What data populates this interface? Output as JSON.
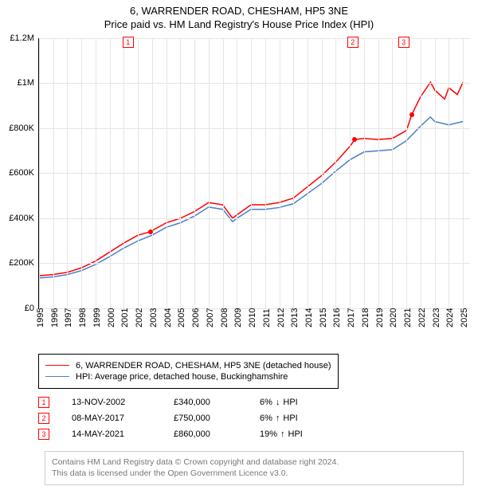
{
  "title": {
    "line1": "6, WARRENDER ROAD, CHESHAM, HP5 3NE",
    "line2": "Price paid vs. HM Land Registry's House Price Index (HPI)"
  },
  "chart": {
    "type": "line",
    "background_color": "#ffffff",
    "grid_color": "#e5e5e5",
    "axis_color": "#000000",
    "font_size_labels": 11,
    "ylim": [
      0,
      1200000
    ],
    "ytick_step": 200000,
    "yticks": [
      {
        "v": 0,
        "label": "£0"
      },
      {
        "v": 200000,
        "label": "£200K"
      },
      {
        "v": 400000,
        "label": "£400K"
      },
      {
        "v": 600000,
        "label": "£600K"
      },
      {
        "v": 800000,
        "label": "£800K"
      },
      {
        "v": 1000000,
        "label": "£1M"
      },
      {
        "v": 1200000,
        "label": "£1.2M"
      }
    ],
    "xlim": [
      1995,
      2025.5
    ],
    "xticks": [
      1995,
      1996,
      1997,
      1998,
      1999,
      2000,
      2001,
      2002,
      2003,
      2004,
      2005,
      2006,
      2007,
      2008,
      2009,
      2010,
      2011,
      2012,
      2013,
      2014,
      2015,
      2016,
      2017,
      2018,
      2019,
      2020,
      2021,
      2022,
      2023,
      2024,
      2025
    ],
    "series": [
      {
        "name": "6, WARRENDER ROAD, CHESHAM, HP5 3NE (detached house)",
        "color": "#ff0000",
        "line_width": 1.5,
        "data": [
          [
            1995,
            145000
          ],
          [
            1996,
            150000
          ],
          [
            1997,
            160000
          ],
          [
            1998,
            180000
          ],
          [
            1999,
            210000
          ],
          [
            2000,
            250000
          ],
          [
            2001,
            290000
          ],
          [
            2002,
            325000
          ],
          [
            2002.87,
            340000
          ],
          [
            2003,
            345000
          ],
          [
            2004,
            380000
          ],
          [
            2005,
            400000
          ],
          [
            2006,
            430000
          ],
          [
            2007,
            470000
          ],
          [
            2008,
            460000
          ],
          [
            2008.7,
            400000
          ],
          [
            2009,
            415000
          ],
          [
            2010,
            460000
          ],
          [
            2011,
            460000
          ],
          [
            2012,
            470000
          ],
          [
            2013,
            490000
          ],
          [
            2014,
            540000
          ],
          [
            2015,
            590000
          ],
          [
            2016,
            650000
          ],
          [
            2017,
            720000
          ],
          [
            2017.35,
            750000
          ],
          [
            2018,
            755000
          ],
          [
            2019,
            750000
          ],
          [
            2020,
            755000
          ],
          [
            2021,
            790000
          ],
          [
            2021.37,
            860000
          ],
          [
            2022,
            940000
          ],
          [
            2022.7,
            1005000
          ],
          [
            2023,
            970000
          ],
          [
            2023.7,
            930000
          ],
          [
            2024,
            980000
          ],
          [
            2024.6,
            950000
          ],
          [
            2025,
            1005000
          ]
        ]
      },
      {
        "name": "HPI: Average price, detached house, Buckinghamshire",
        "color": "#4a7fc8",
        "line_width": 1.5,
        "data": [
          [
            1995,
            135000
          ],
          [
            1996,
            140000
          ],
          [
            1997,
            150000
          ],
          [
            1998,
            168000
          ],
          [
            1999,
            195000
          ],
          [
            2000,
            230000
          ],
          [
            2001,
            268000
          ],
          [
            2002,
            300000
          ],
          [
            2003,
            325000
          ],
          [
            2004,
            360000
          ],
          [
            2005,
            380000
          ],
          [
            2006,
            410000
          ],
          [
            2007,
            450000
          ],
          [
            2008,
            440000
          ],
          [
            2008.7,
            385000
          ],
          [
            2009,
            400000
          ],
          [
            2010,
            440000
          ],
          [
            2011,
            440000
          ],
          [
            2012,
            448000
          ],
          [
            2013,
            465000
          ],
          [
            2014,
            510000
          ],
          [
            2015,
            555000
          ],
          [
            2016,
            610000
          ],
          [
            2017,
            660000
          ],
          [
            2018,
            695000
          ],
          [
            2019,
            700000
          ],
          [
            2020,
            705000
          ],
          [
            2021,
            745000
          ],
          [
            2022,
            810000
          ],
          [
            2022.7,
            850000
          ],
          [
            2023,
            830000
          ],
          [
            2024,
            815000
          ],
          [
            2025,
            830000
          ]
        ]
      }
    ],
    "markers": [
      {
        "n": "1",
        "x": 2002.87,
        "y": 340000,
        "box_x": 2001.3
      },
      {
        "n": "2",
        "x": 2017.35,
        "y": 750000,
        "box_x": 2017.2
      },
      {
        "n": "3",
        "x": 2021.37,
        "y": 860000,
        "box_x": 2020.8
      }
    ]
  },
  "legend": {
    "border_color": "#000000",
    "font_size": 11
  },
  "events": [
    {
      "n": "1",
      "date": "13-NOV-2002",
      "price": "£340,000",
      "pct": "6%",
      "dir": "↓",
      "suffix": "HPI"
    },
    {
      "n": "2",
      "date": "08-MAY-2017",
      "price": "£750,000",
      "pct": "6%",
      "dir": "↑",
      "suffix": "HPI"
    },
    {
      "n": "3",
      "date": "14-MAY-2021",
      "price": "£860,000",
      "pct": "19%",
      "dir": "↑",
      "suffix": "HPI"
    }
  ],
  "footer": {
    "line1": "Contains HM Land Registry data © Crown copyright and database right 2024.",
    "line2": "This data is licensed under the Open Government Licence v3.0.",
    "text_color": "#888888",
    "border_color": "#cccccc"
  }
}
